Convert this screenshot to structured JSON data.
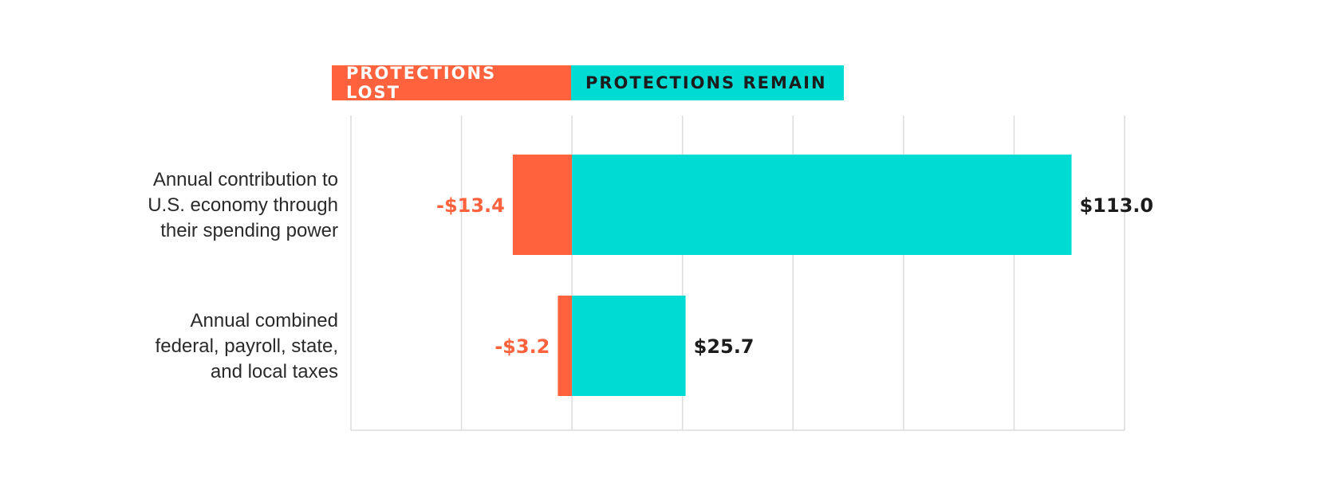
{
  "colors": {
    "lost": "#ff623d",
    "remain": "#00dbd4",
    "grid": "#dcdcdc",
    "text": "#2a2a2a"
  },
  "legend": {
    "lost_label": "PROTECTIONS LOST",
    "remain_label": "PROTECTIONS REMAIN"
  },
  "chart_data": {
    "type": "bar",
    "orientation": "horizontal",
    "stacked": true,
    "categories": [
      [
        "Annual contribution to",
        "U.S. economy through",
        "their spending power"
      ],
      [
        "Annual combined",
        "federal, payroll, state,",
        "and local taxes"
      ]
    ],
    "series": [
      {
        "name": "PROTECTIONS LOST",
        "values": [
          -13.4,
          -3.2
        ],
        "labels": [
          "-$13.4",
          "-$3.2"
        ]
      },
      {
        "name": "PROTECTIONS REMAIN",
        "values": [
          113.0,
          25.7
        ],
        "labels": [
          "$113.0",
          "$25.7"
        ]
      }
    ],
    "xlim": [
      -50,
      125
    ],
    "grid": true,
    "legend_position": "top"
  }
}
